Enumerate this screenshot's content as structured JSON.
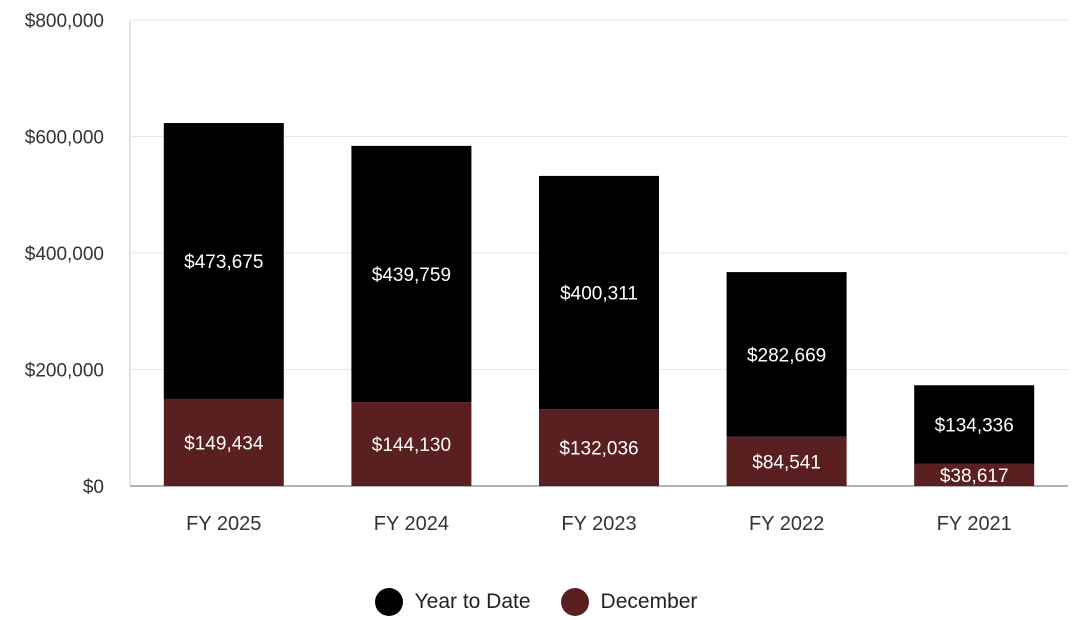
{
  "chart_data": {
    "type": "bar",
    "stacked": true,
    "categories": [
      "FY 2025",
      "FY 2024",
      "FY 2023",
      "FY 2022",
      "FY 2021"
    ],
    "series": [
      {
        "name": "December",
        "color": "#5a1f1f",
        "values": [
          149434,
          144130,
          132036,
          84541,
          38617
        ],
        "labels": [
          "$149,434",
          "$144,130",
          "$132,036",
          "$84,541",
          "$38,617"
        ]
      },
      {
        "name": "Year to Date",
        "color": "#000000",
        "values": [
          473675,
          439759,
          400311,
          282669,
          134336
        ],
        "labels": [
          "$473,675",
          "$439,759",
          "$400,311",
          "$282,669",
          "$134,336"
        ]
      }
    ],
    "ylim": [
      0,
      800000
    ],
    "yticks": [
      {
        "value": 0,
        "label": "$0"
      },
      {
        "value": 200000,
        "label": "$200,000"
      },
      {
        "value": 400000,
        "label": "$400,000"
      },
      {
        "value": 600000,
        "label": "$600,000"
      },
      {
        "value": 800000,
        "label": "$800,000"
      }
    ],
    "grid": true,
    "legend_position": "bottom-center",
    "title": "",
    "xlabel": "",
    "ylabel": ""
  },
  "legend": {
    "items": [
      {
        "label": "Year to Date",
        "color": "#000000"
      },
      {
        "label": "December",
        "color": "#5a1f1f"
      }
    ]
  }
}
